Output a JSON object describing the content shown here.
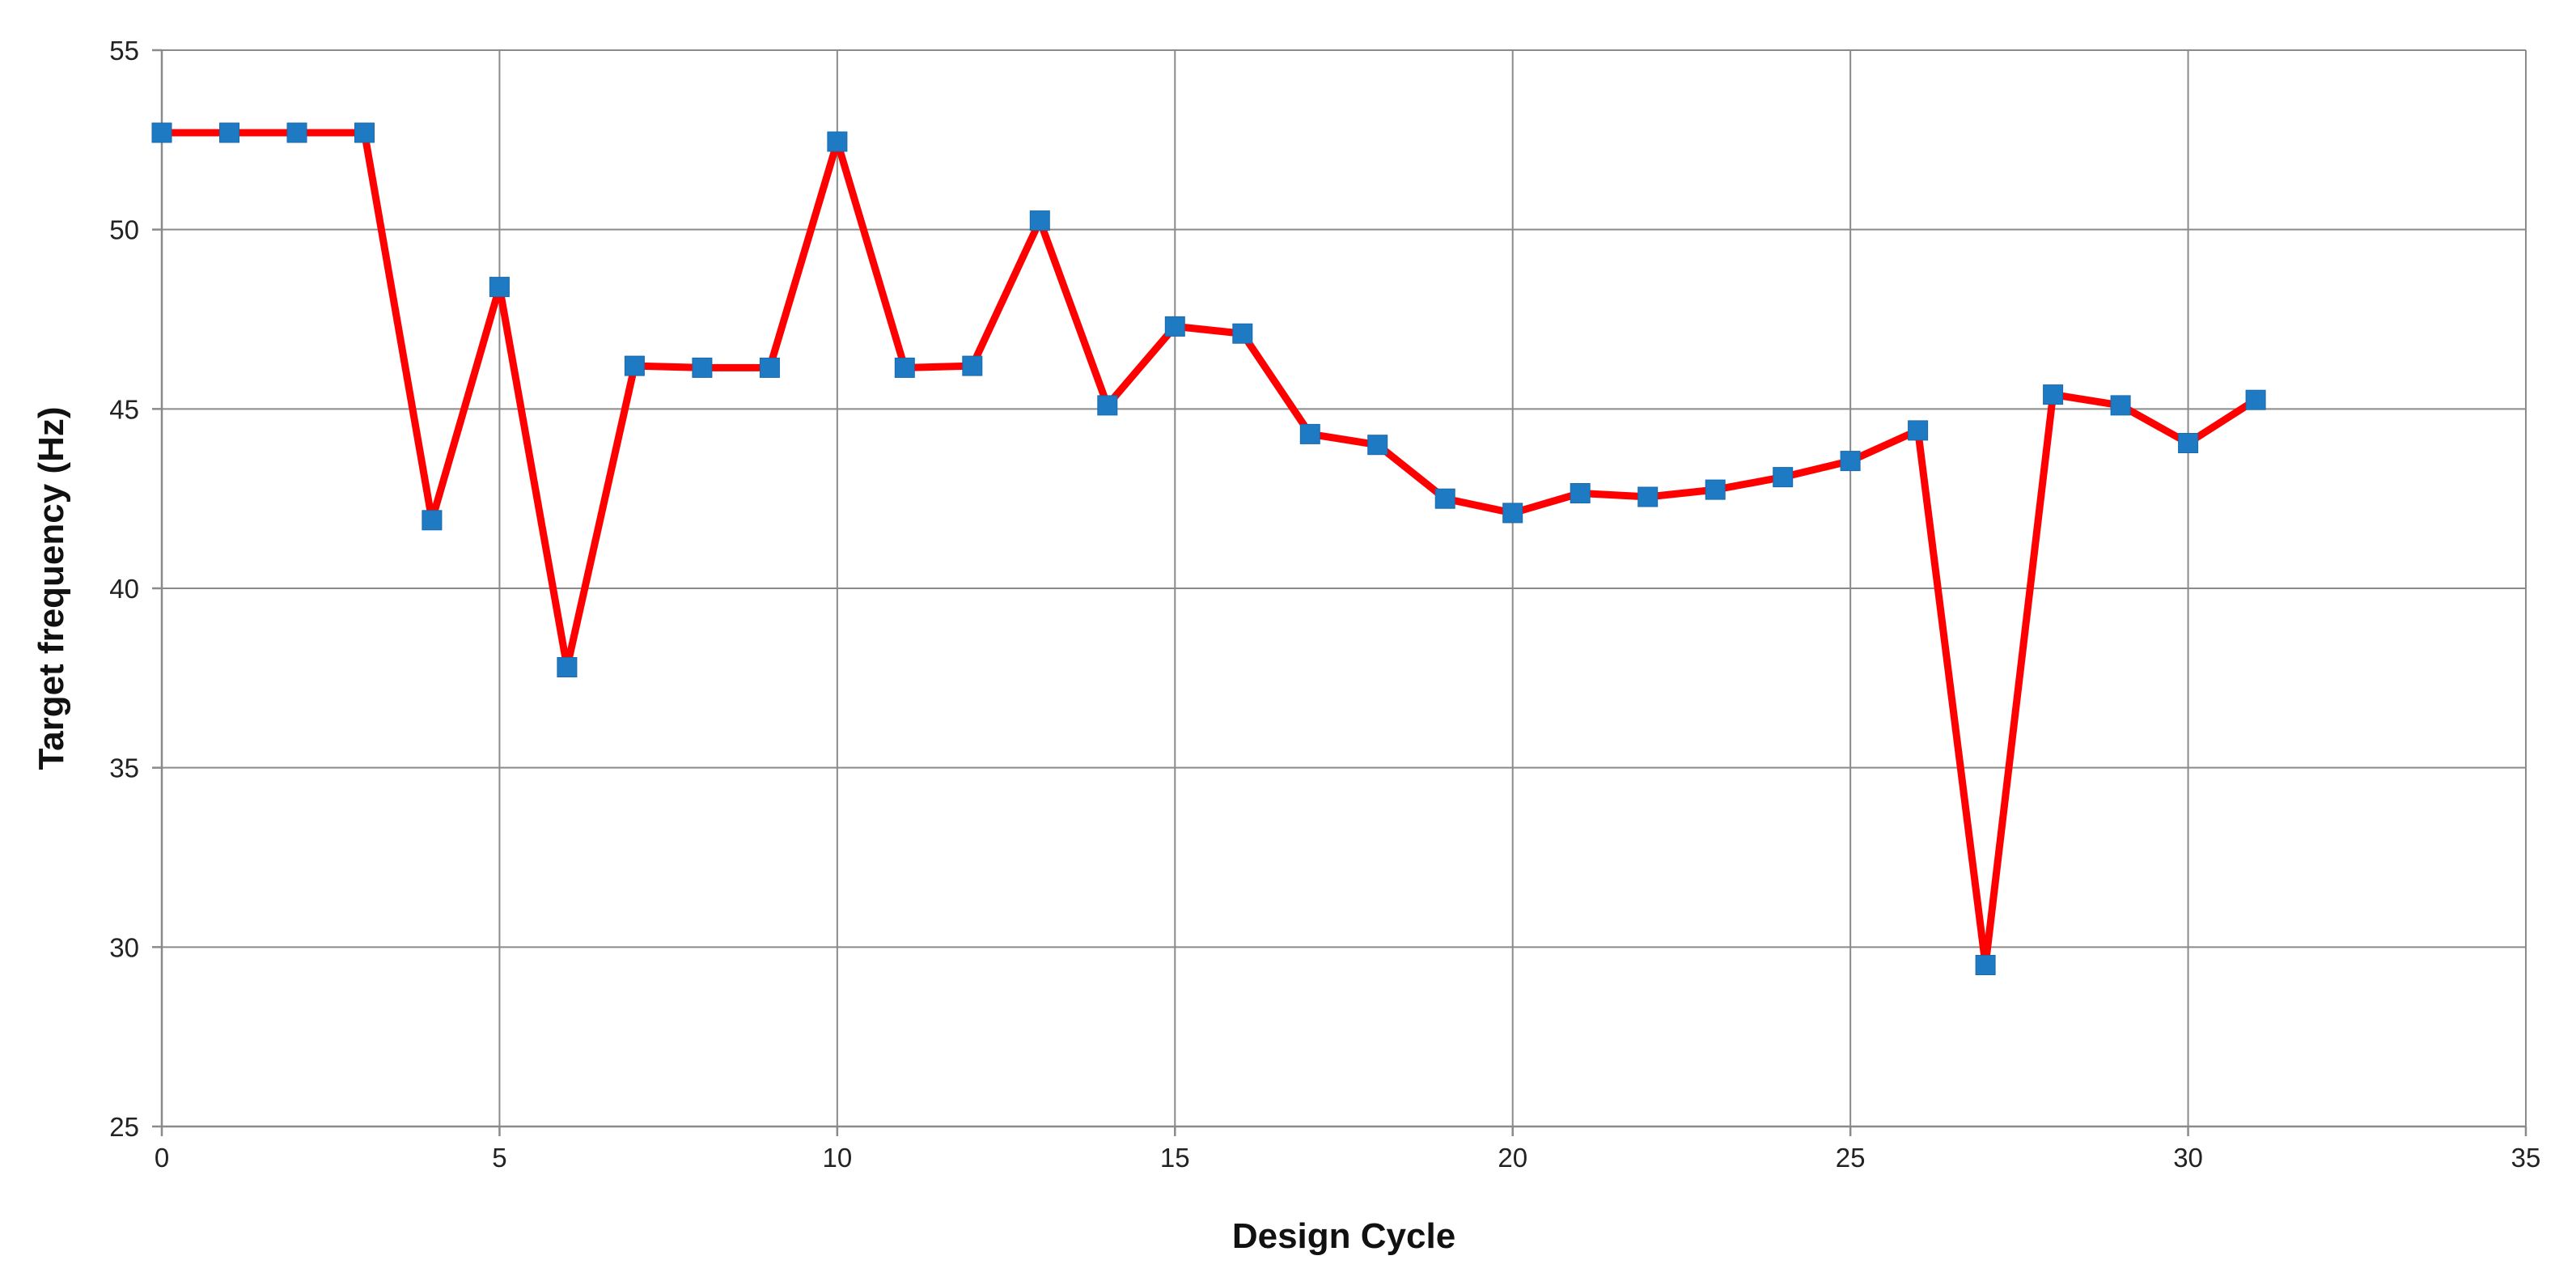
{
  "chart_data": {
    "type": "line",
    "title": "",
    "xlabel": "Design Cycle",
    "ylabel": "Target frequency (Hz)",
    "xlim": [
      0,
      35
    ],
    "ylim": [
      25,
      55
    ],
    "x_ticks": [
      0,
      5,
      10,
      15,
      20,
      25,
      30,
      35
    ],
    "y_ticks": [
      25,
      30,
      35,
      40,
      45,
      50,
      55
    ],
    "grid": true,
    "legend": "none",
    "series": [
      {
        "line_color": "#ff0000",
        "marker_color": "#1f7ac4",
        "marker": "square",
        "x": [
          0,
          1,
          2,
          3,
          4,
          5,
          6,
          7,
          8,
          9,
          10,
          11,
          12,
          13,
          14,
          15,
          16,
          17,
          18,
          19,
          20,
          21,
          22,
          23,
          24,
          25,
          26,
          27,
          28,
          29,
          30,
          31
        ],
        "y": [
          52.7,
          52.7,
          52.7,
          52.7,
          41.9,
          48.4,
          37.8,
          46.2,
          46.15,
          46.15,
          52.45,
          46.15,
          46.2,
          50.25,
          45.1,
          47.3,
          47.1,
          44.3,
          44.0,
          42.5,
          42.1,
          42.65,
          42.55,
          42.75,
          43.1,
          43.55,
          44.4,
          29.5,
          45.4,
          45.1,
          44.05,
          45.25
        ]
      }
    ]
  }
}
